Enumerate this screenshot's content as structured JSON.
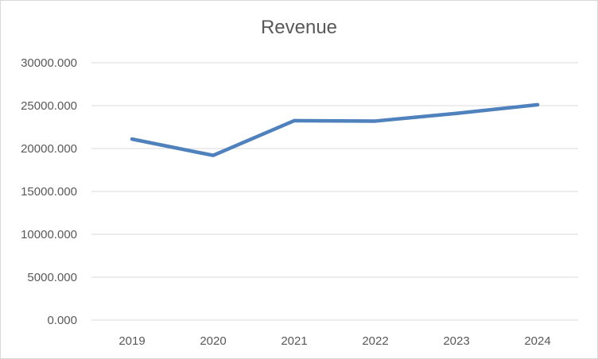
{
  "chart_data": {
    "type": "line",
    "title": "Revenue",
    "xlabel": "",
    "ylabel": "",
    "categories": [
      "2019",
      "2020",
      "2021",
      "2022",
      "2023",
      "2024"
    ],
    "series": [
      {
        "values": [
          21100,
          19200,
          23250,
          23200,
          24100,
          25100
        ],
        "color": "#4f81bd"
      }
    ],
    "ylim": [
      0,
      30000
    ],
    "y_ticks": [
      0,
      5000,
      10000,
      15000,
      20000,
      25000,
      30000
    ],
    "y_tick_labels": [
      "0.000",
      "5000.000",
      "10000.000",
      "15000.000",
      "20000.000",
      "25000.000",
      "30000.000"
    ],
    "grid": true,
    "legend": "none",
    "grid_color": "#d9d9d9",
    "text_color": "#595959"
  }
}
